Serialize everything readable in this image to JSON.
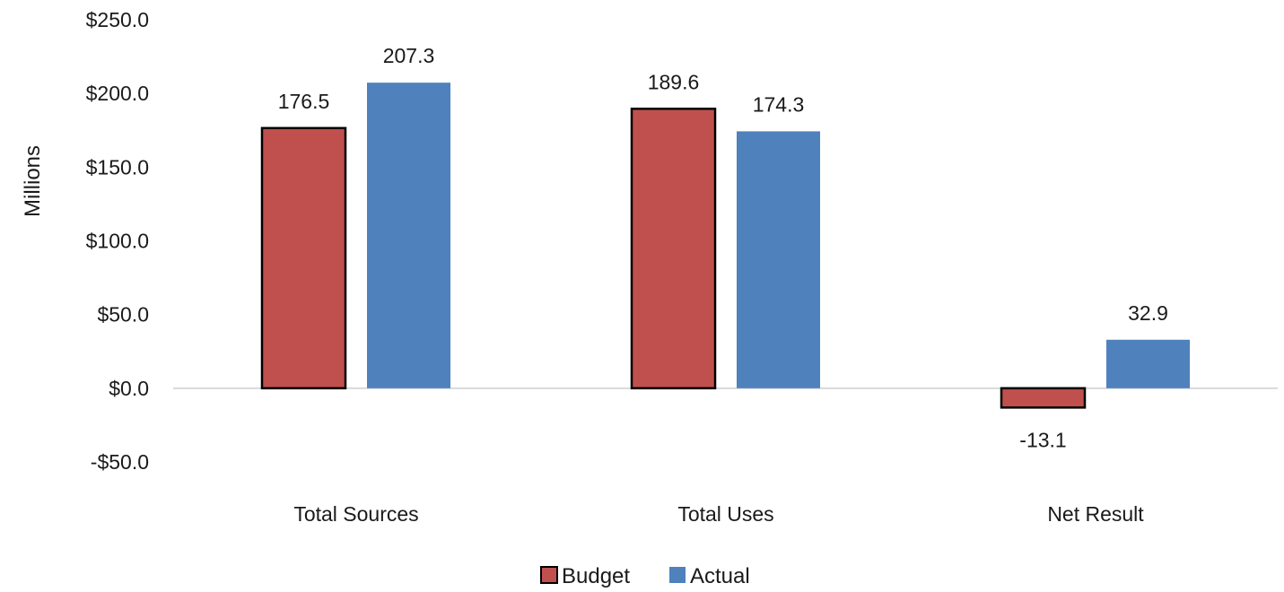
{
  "chart_data": {
    "type": "bar",
    "categories": [
      "Total Sources",
      "Total Uses",
      "Net Result"
    ],
    "series": [
      {
        "name": "Budget",
        "values": [
          176.5,
          189.6,
          -13.1
        ],
        "color": "#C0504D",
        "outline": "#000000"
      },
      {
        "name": "Actual",
        "values": [
          207.3,
          174.3,
          32.9
        ],
        "color": "#4F81BD"
      }
    ],
    "data_labels": [
      [
        "176.5",
        "189.6",
        "-13.1"
      ],
      [
        "207.3",
        "174.3",
        "32.9"
      ]
    ],
    "ylabel": "Millions",
    "yticks": [
      250,
      200,
      150,
      100,
      50,
      0,
      -50
    ],
    "ytick_labels": [
      "$250.0",
      "$200.0",
      "$150.0",
      "$100.0",
      "$50.0",
      "$0.0",
      "-$50.0"
    ],
    "ylim": [
      -50,
      250
    ],
    "grid": false,
    "legend": "bottom-center",
    "zero_line_color": "#D9D9D9"
  }
}
